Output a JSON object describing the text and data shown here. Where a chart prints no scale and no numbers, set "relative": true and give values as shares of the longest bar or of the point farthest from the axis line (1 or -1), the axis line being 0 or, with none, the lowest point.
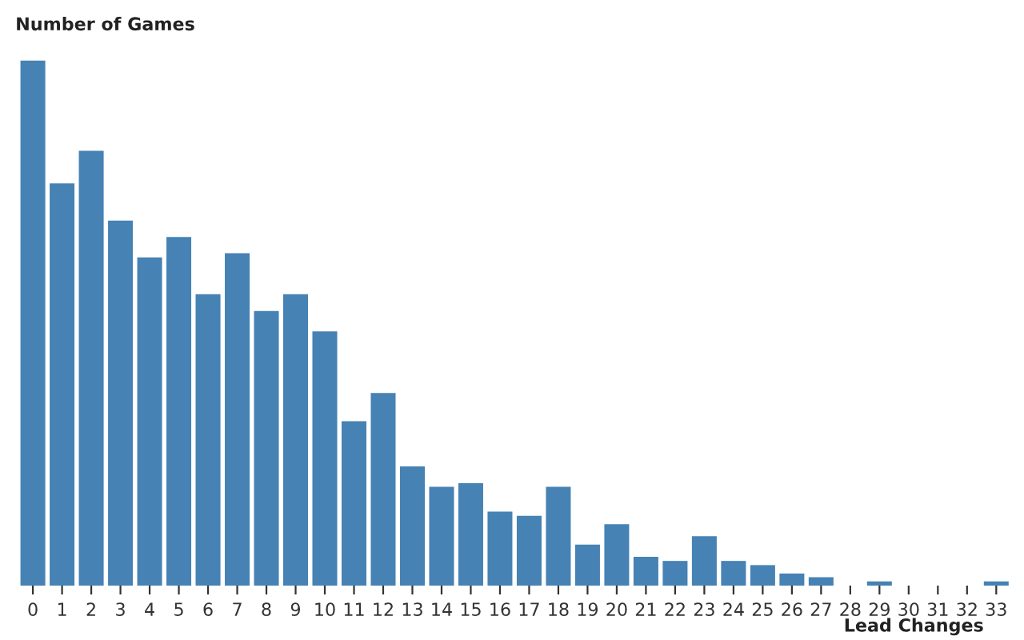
{
  "chart_data": {
    "type": "bar",
    "relative": true,
    "xlabel": "Lead Changes",
    "ylabel": "Number of Games",
    "color": "#4682b4",
    "categories": [
      "0",
      "1",
      "2",
      "3",
      "4",
      "5",
      "6",
      "7",
      "8",
      "9",
      "10",
      "11",
      "12",
      "13",
      "14",
      "15",
      "16",
      "17",
      "18",
      "19",
      "20",
      "21",
      "22",
      "23",
      "24",
      "25",
      "26",
      "27",
      "28",
      "29",
      "30",
      "31",
      "32",
      "33"
    ],
    "values": [
      1,
      0.766,
      0.828,
      0.695,
      0.625,
      0.664,
      0.555,
      0.633,
      0.523,
      0.555,
      0.484,
      0.313,
      0.367,
      0.227,
      0.188,
      0.195,
      0.141,
      0.133,
      0.188,
      0.078,
      0.117,
      0.055,
      0.047,
      0.094,
      0.047,
      0.039,
      0.023,
      0.016,
      0,
      0.008,
      0,
      0,
      0,
      0.008
    ],
    "grid": false,
    "legend": false
  }
}
